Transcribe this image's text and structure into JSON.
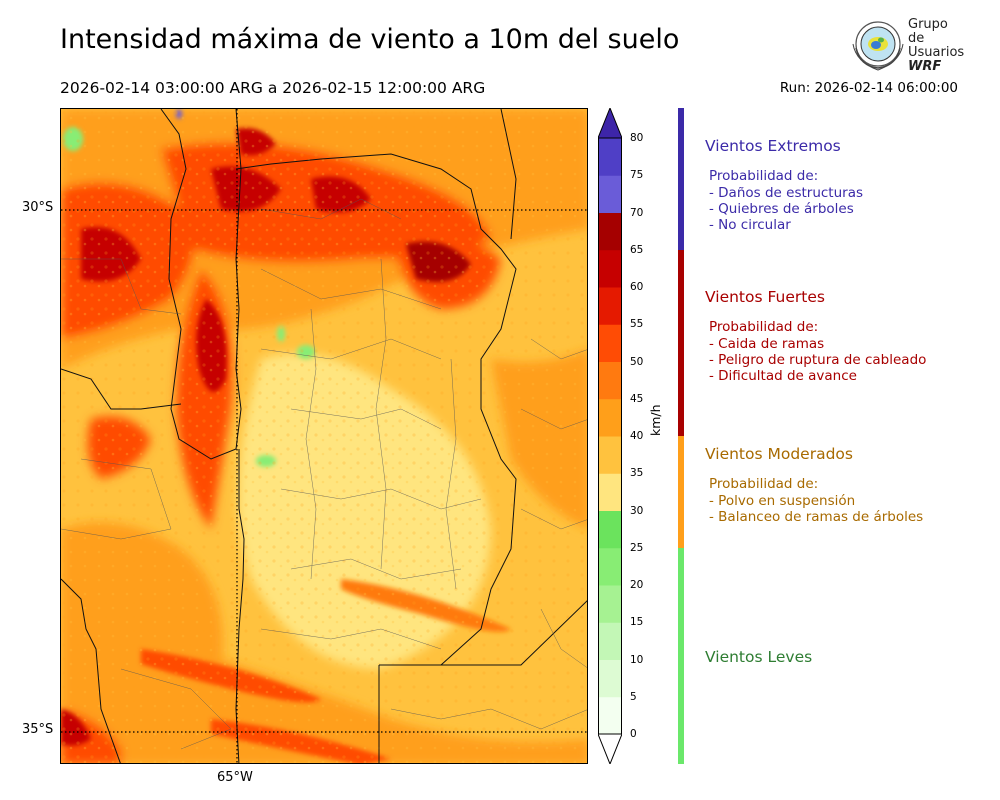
{
  "header": {
    "title": "Intensidad máxima de viento a 10m del suelo",
    "period": "2026-02-14 03:00:00 ARG  a  2026-02-15 12:00:00 ARG",
    "run": "Run: 2026-02-14 06:00:00"
  },
  "logo": {
    "line1": "Grupo de",
    "line2": "Usuarios",
    "line3": "WRF",
    "icon": "globe-seal-icon"
  },
  "map": {
    "lat_labels": [
      "30°S",
      "35°S"
    ],
    "lon_labels": [
      "65°W"
    ],
    "field": "wind-speed-max-10m"
  },
  "colorbar": {
    "unit": "km/h",
    "ticks": [
      "0",
      "5",
      "10",
      "15",
      "20",
      "25",
      "30",
      "35",
      "40",
      "45",
      "50",
      "55",
      "60",
      "65",
      "70",
      "75",
      "80"
    ],
    "colors": [
      "#f3fff0",
      "#ddfbd3",
      "#c3f7b6",
      "#a6f292",
      "#88ed74",
      "#6be35d",
      "#ffe57f",
      "#ffc23e",
      "#ff9f1a",
      "#ff7a10",
      "#ff4c05",
      "#e51a00",
      "#c60000",
      "#a50000",
      "#6a5cd8",
      "#4f3fc6",
      "#3d25a8"
    ],
    "extend": "both"
  },
  "categories": [
    {
      "title": "Vientos Extremos",
      "color": "#3b2aa8",
      "bar_color": "#3b2aa8",
      "lines": [
        "Probabilidad de:",
        "- Daños de estructuras",
        "- Quiebres de árboles",
        "- No circular"
      ]
    },
    {
      "title": "Vientos Fuertes",
      "color": "#a80000",
      "bar_color": "#a80000",
      "lines": [
        "Probabilidad de:",
        "- Caida de ramas",
        "- Peligro de ruptura de cableado",
        "- Dificultad de avance"
      ]
    },
    {
      "title": "Vientos Moderados",
      "color": "#a86a00",
      "bar_color": "#ff9f1a",
      "lines": [
        "Probabilidad de:",
        "- Polvo en suspensión",
        "- Balanceo de ramas de árboles"
      ]
    },
    {
      "title": "Vientos Leves",
      "color": "#2e7d32",
      "bar_color": "#6be86b",
      "lines": []
    }
  ]
}
